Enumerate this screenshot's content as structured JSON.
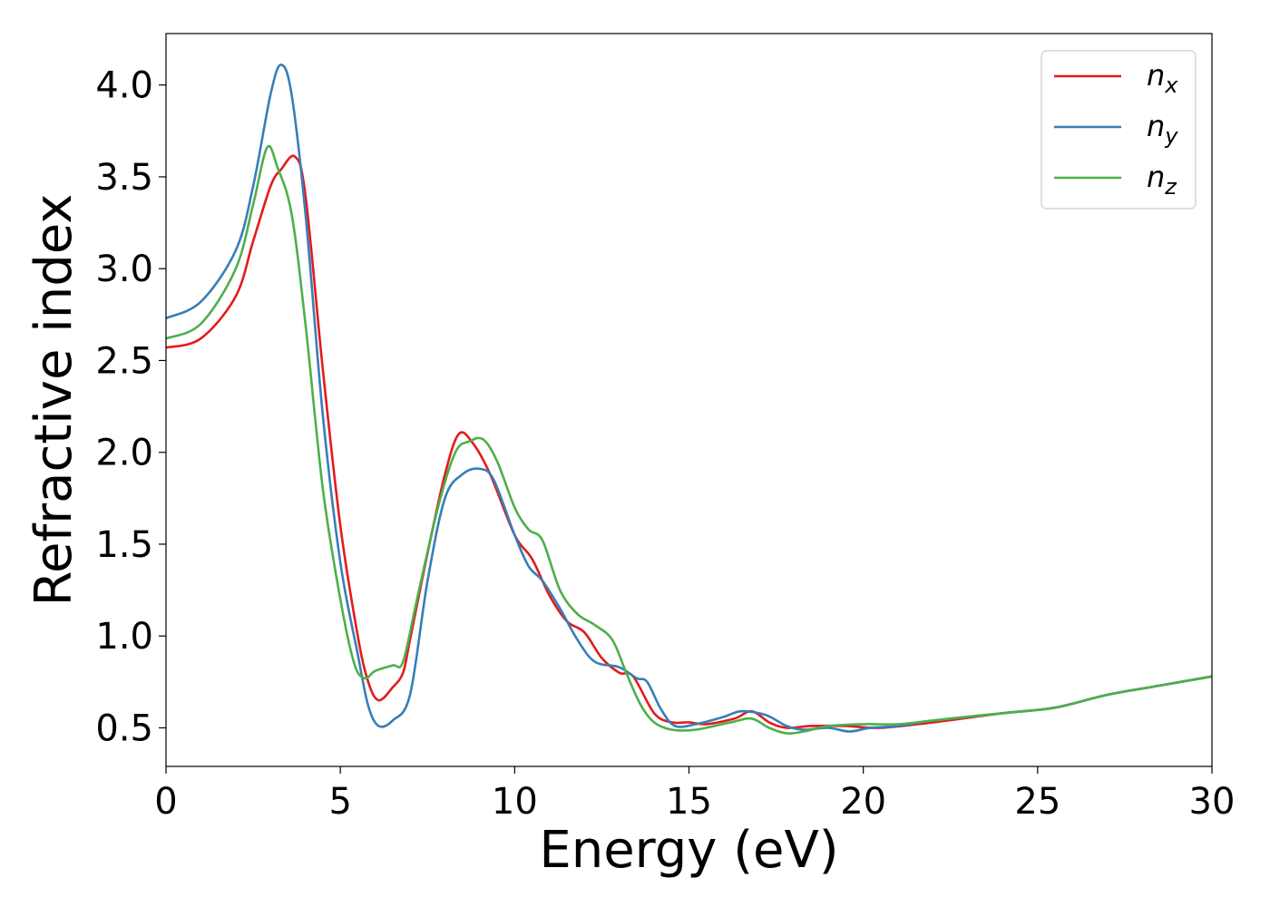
{
  "chart_data": {
    "type": "line",
    "xlabel": "Energy (eV)",
    "ylabel": "Refractive index",
    "xlim": [
      0,
      30
    ],
    "ylim": [
      0.29,
      4.28
    ],
    "xticks": [
      0,
      5,
      10,
      15,
      20,
      25,
      30
    ],
    "yticks": [
      0.5,
      1.0,
      1.5,
      2.0,
      2.5,
      3.0,
      3.5,
      4.0
    ],
    "xtick_labels": [
      "0",
      "5",
      "10",
      "15",
      "20",
      "25",
      "30"
    ],
    "ytick_labels": [
      "0.5",
      "1.0",
      "1.5",
      "2.0",
      "2.5",
      "3.0",
      "3.5",
      "4.0"
    ],
    "grid": false,
    "legend_position": "top-right",
    "series": [
      {
        "name": "n_x",
        "label_base": "n",
        "label_sub": "x",
        "color": "#e41a1c",
        "points": [
          [
            0,
            2.57
          ],
          [
            1,
            2.62
          ],
          [
            2,
            2.85
          ],
          [
            2.5,
            3.15
          ],
          [
            3,
            3.45
          ],
          [
            3.3,
            3.54
          ],
          [
            3.7,
            3.61
          ],
          [
            4,
            3.4
          ],
          [
            4.5,
            2.45
          ],
          [
            5,
            1.6
          ],
          [
            5.5,
            1.0
          ],
          [
            5.8,
            0.75
          ],
          [
            6.1,
            0.65
          ],
          [
            6.5,
            0.72
          ],
          [
            6.8,
            0.8
          ],
          [
            7,
            0.98
          ],
          [
            7.5,
            1.45
          ],
          [
            8,
            1.88
          ],
          [
            8.4,
            2.1
          ],
          [
            8.8,
            2.05
          ],
          [
            9.3,
            1.88
          ],
          [
            10,
            1.55
          ],
          [
            10.5,
            1.42
          ],
          [
            11,
            1.22
          ],
          [
            11.5,
            1.08
          ],
          [
            12,
            1.02
          ],
          [
            12.5,
            0.88
          ],
          [
            13,
            0.8
          ],
          [
            13.4,
            0.78
          ],
          [
            14,
            0.58
          ],
          [
            14.5,
            0.53
          ],
          [
            15,
            0.53
          ],
          [
            15.5,
            0.52
          ],
          [
            16.3,
            0.55
          ],
          [
            16.8,
            0.59
          ],
          [
            17.3,
            0.53
          ],
          [
            17.8,
            0.5
          ],
          [
            18.5,
            0.51
          ],
          [
            19.5,
            0.51
          ],
          [
            20.5,
            0.5
          ],
          [
            22,
            0.53
          ],
          [
            24,
            0.58
          ],
          [
            25.5,
            0.61
          ],
          [
            27,
            0.68
          ],
          [
            28.5,
            0.73
          ],
          [
            30,
            0.78
          ]
        ]
      },
      {
        "name": "n_y",
        "label_base": "n",
        "label_sub": "y",
        "color": "#377eb8",
        "points": [
          [
            0,
            2.73
          ],
          [
            1,
            2.82
          ],
          [
            2,
            3.1
          ],
          [
            2.5,
            3.45
          ],
          [
            3,
            3.95
          ],
          [
            3.3,
            4.11
          ],
          [
            3.6,
            3.95
          ],
          [
            4,
            3.3
          ],
          [
            4.5,
            2.2
          ],
          [
            5,
            1.4
          ],
          [
            5.5,
            0.9
          ],
          [
            5.8,
            0.62
          ],
          [
            6.1,
            0.51
          ],
          [
            6.5,
            0.54
          ],
          [
            7,
            0.68
          ],
          [
            7.5,
            1.3
          ],
          [
            8,
            1.75
          ],
          [
            8.5,
            1.88
          ],
          [
            9,
            1.91
          ],
          [
            9.4,
            1.85
          ],
          [
            10,
            1.55
          ],
          [
            10.4,
            1.38
          ],
          [
            10.8,
            1.3
          ],
          [
            11.3,
            1.15
          ],
          [
            11.8,
            0.98
          ],
          [
            12.3,
            0.86
          ],
          [
            13,
            0.83
          ],
          [
            13.5,
            0.77
          ],
          [
            13.8,
            0.75
          ],
          [
            14.2,
            0.6
          ],
          [
            14.6,
            0.51
          ],
          [
            15.2,
            0.52
          ],
          [
            16,
            0.56
          ],
          [
            16.5,
            0.59
          ],
          [
            17.2,
            0.57
          ],
          [
            17.8,
            0.51
          ],
          [
            18.3,
            0.49
          ],
          [
            19,
            0.5
          ],
          [
            19.6,
            0.48
          ],
          [
            20.2,
            0.5
          ],
          [
            21,
            0.51
          ],
          [
            22,
            0.54
          ],
          [
            24,
            0.58
          ],
          [
            25.5,
            0.61
          ],
          [
            27,
            0.68
          ],
          [
            28.5,
            0.73
          ],
          [
            30,
            0.78
          ]
        ]
      },
      {
        "name": "n_z",
        "label_base": "n",
        "label_sub": "z",
        "color": "#4daf4a",
        "points": [
          [
            0,
            2.62
          ],
          [
            1,
            2.7
          ],
          [
            2,
            3.0
          ],
          [
            2.5,
            3.35
          ],
          [
            2.9,
            3.66
          ],
          [
            3.2,
            3.55
          ],
          [
            3.6,
            3.3
          ],
          [
            4,
            2.7
          ],
          [
            4.5,
            1.8
          ],
          [
            5,
            1.2
          ],
          [
            5.4,
            0.85
          ],
          [
            5.7,
            0.77
          ],
          [
            6,
            0.81
          ],
          [
            6.5,
            0.84
          ],
          [
            6.8,
            0.86
          ],
          [
            7.2,
            1.2
          ],
          [
            7.8,
            1.7
          ],
          [
            8.3,
            2.0
          ],
          [
            8.7,
            2.06
          ],
          [
            9.1,
            2.07
          ],
          [
            9.5,
            1.95
          ],
          [
            10,
            1.7
          ],
          [
            10.4,
            1.58
          ],
          [
            10.8,
            1.52
          ],
          [
            11.3,
            1.25
          ],
          [
            11.8,
            1.12
          ],
          [
            12.3,
            1.06
          ],
          [
            12.8,
            0.98
          ],
          [
            13.2,
            0.8
          ],
          [
            13.6,
            0.63
          ],
          [
            14,
            0.53
          ],
          [
            14.5,
            0.49
          ],
          [
            15.2,
            0.49
          ],
          [
            16.2,
            0.53
          ],
          [
            16.8,
            0.55
          ],
          [
            17.3,
            0.5
          ],
          [
            17.8,
            0.47
          ],
          [
            18.3,
            0.48
          ],
          [
            19,
            0.51
          ],
          [
            20,
            0.52
          ],
          [
            21,
            0.52
          ],
          [
            22,
            0.54
          ],
          [
            24,
            0.58
          ],
          [
            25.5,
            0.61
          ],
          [
            27,
            0.68
          ],
          [
            28.5,
            0.73
          ],
          [
            30,
            0.78
          ]
        ]
      }
    ]
  }
}
